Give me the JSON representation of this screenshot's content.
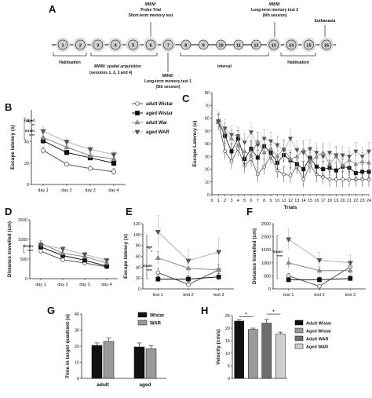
{
  "panel_letters": [
    "A",
    "B",
    "C",
    "D",
    "E",
    "F",
    "G",
    "H"
  ],
  "timeline": {
    "days": [
      "1",
      "2",
      "3",
      "4",
      "5",
      "6",
      "7",
      "8",
      "9",
      "10",
      "11",
      "12",
      "13",
      "14",
      "15",
      "16"
    ],
    "highlight_days": [
      "1",
      "2",
      "3",
      "4",
      "5",
      "6",
      "7",
      "13",
      "14",
      "15",
      "16"
    ],
    "labels": {
      "habituation1": "Habituation",
      "acq_title": "MWM: spatial acquisition",
      "acq_sub": "(sessions 1, 2, 3 and 4)",
      "probe_mwm": "MWM:",
      "probe_l1": "Probe Trial",
      "probe_l2": "Short-term memory test",
      "lt1_mwm": "MWM:",
      "lt1_l1": "Long-term memory test 1",
      "lt1_l2": "(5th session)",
      "interval": "Interval",
      "lt2_mwm": "MWM:",
      "lt2_l1": "Long-term memory test 2",
      "lt2_l2": "(6th session)",
      "habituation2": "Habituation",
      "euthanasia": "Euthanasia"
    }
  },
  "legend_groups": [
    "adult Wistar",
    "aged Wistar",
    "adult War",
    "aged WAR"
  ],
  "chart_data": [
    {
      "panel": "B",
      "type": "line",
      "ylabel": "Escape latency (s)",
      "xlabel": "",
      "categories": [
        "day 1",
        "day 2",
        "day 3",
        "day 4"
      ],
      "ylim": [
        0,
        70
      ],
      "yticks": [
        "0",
        "20",
        "40",
        "60"
      ],
      "series": [
        {
          "name": "adult Wistar",
          "values": [
            32,
            19,
            15,
            12
          ],
          "err": [
            3,
            2,
            2,
            3
          ]
        },
        {
          "name": "aged Wistar",
          "values": [
            41,
            30,
            25,
            20
          ],
          "err": [
            3,
            2,
            2,
            3
          ]
        },
        {
          "name": "adult War",
          "values": [
            44,
            35,
            27,
            24
          ],
          "err": [
            4,
            3,
            3,
            3
          ]
        },
        {
          "name": "aged WAR",
          "values": [
            50,
            40,
            33,
            28
          ],
          "err": [
            4,
            4,
            3,
            3
          ]
        }
      ],
      "annotations": [
        "aged",
        "**",
        "strain",
        "****"
      ]
    },
    {
      "panel": "C",
      "type": "line",
      "ylabel": "Escape Latency (s)",
      "xlabel": "Trials",
      "x": [
        "0",
        "1",
        "2",
        "3",
        "4",
        "5",
        "6",
        "7",
        "8",
        "9",
        "10",
        "11",
        "12",
        "13",
        "14",
        "15",
        "16",
        "17",
        "18",
        "19",
        "20",
        "21",
        "22",
        "23",
        "24"
      ],
      "ylim": [
        0,
        80
      ],
      "yticks": [
        "0",
        "10",
        "20",
        "30",
        "40",
        "50",
        "60",
        "70",
        "80"
      ],
      "series": [
        {
          "name": "adult Wistar",
          "values": [
            null,
            57,
            34,
            26,
            36,
            23,
            28,
            16,
            22,
            30,
            19,
            16,
            15,
            22,
            12,
            23,
            16,
            14,
            12,
            12,
            12,
            12,
            12,
            12,
            12
          ],
          "err": 6
        },
        {
          "name": "aged Wistar",
          "values": [
            null,
            57,
            46,
            34,
            44,
            28,
            36,
            29,
            38,
            33,
            25,
            31,
            27,
            24,
            20,
            29,
            22,
            20,
            21,
            19,
            22,
            21,
            17,
            18,
            18
          ],
          "err": 6
        },
        {
          "name": "adult War",
          "values": [
            null,
            57,
            49,
            44,
            39,
            34,
            31,
            42,
            33,
            36,
            30,
            36,
            28,
            30,
            35,
            26,
            30,
            33,
            24,
            30,
            23,
            27,
            24,
            26,
            25
          ],
          "err": 7
        },
        {
          "name": "aged WAR",
          "values": [
            null,
            58,
            52,
            47,
            46,
            41,
            49,
            39,
            44,
            42,
            39,
            35,
            44,
            35,
            33,
            36,
            33,
            30,
            33,
            31,
            31,
            30,
            34,
            30,
            34
          ],
          "err": 7
        }
      ]
    },
    {
      "panel": "D",
      "type": "line",
      "ylabel": "Distance travelled (cm)",
      "xlabel": "",
      "categories": [
        "day 1",
        "day 2",
        "day 3",
        "day 4"
      ],
      "ylim": [
        0,
        1500
      ],
      "yticks": [
        "0",
        "500",
        "1000",
        "1500"
      ],
      "series": [
        {
          "name": "adult Wistar",
          "values": [
            700,
            480,
            400,
            300
          ],
          "err": [
            50,
            40,
            40,
            40
          ]
        },
        {
          "name": "aged Wistar",
          "values": [
            810,
            590,
            470,
            320
          ],
          "err": [
            60,
            50,
            50,
            40
          ]
        },
        {
          "name": "adult War",
          "values": [
            900,
            650,
            560,
            400
          ],
          "err": [
            70,
            50,
            50,
            50
          ]
        },
        {
          "name": "aged WAR",
          "values": [
            860,
            760,
            620,
            470
          ],
          "err": [
            70,
            60,
            60,
            50
          ]
        }
      ],
      "annotations": [
        "strain",
        "****"
      ]
    },
    {
      "panel": "E",
      "type": "line",
      "ylabel": "Escape latency (s)",
      "xlabel": "",
      "categories": [
        "test 1",
        "test 2",
        "test 3"
      ],
      "ylim": [
        0,
        120
      ],
      "yticks": [
        "0",
        "20",
        "40",
        "60",
        "80",
        "100",
        "120"
      ],
      "series": [
        {
          "name": "adult Wistar",
          "values": [
            30,
            8,
            35
          ],
          "err": [
            8,
            4,
            10
          ]
        },
        {
          "name": "aged Wistar",
          "values": [
            18,
            18,
            22
          ],
          "err": [
            5,
            6,
            6
          ]
        },
        {
          "name": "adult War",
          "values": [
            57,
            38,
            35
          ],
          "err": [
            12,
            10,
            10
          ]
        },
        {
          "name": "aged WAR",
          "values": [
            105,
            52,
            68
          ],
          "err": [
            30,
            20,
            25
          ]
        }
      ],
      "annotations": [
        "age",
        "*",
        "strain",
        "****"
      ]
    },
    {
      "panel": "F",
      "type": "line",
      "ylabel": "Distance travelled (cm)",
      "xlabel": "",
      "categories": [
        "test 1",
        "test 2",
        "test 3"
      ],
      "ylim": [
        0,
        2500
      ],
      "yticks": [
        "0",
        "500",
        "1000",
        "1500",
        "2000",
        "2500"
      ],
      "series": [
        {
          "name": "adult Wistar",
          "values": [
            500,
            100,
            850
          ],
          "err": [
            100,
            50,
            200
          ]
        },
        {
          "name": "aged Wistar",
          "values": [
            350,
            350,
            400
          ],
          "err": [
            80,
            100,
            100
          ]
        },
        {
          "name": "adult War",
          "values": [
            1000,
            700,
            700
          ],
          "err": [
            200,
            150,
            150
          ]
        },
        {
          "name": "aged WAR",
          "values": [
            1900,
            1100,
            1000
          ],
          "err": [
            400,
            300,
            300
          ]
        }
      ],
      "annotations": [
        "strain",
        "****"
      ]
    },
    {
      "panel": "G",
      "type": "bar",
      "ylabel": "Time in target quadrant (s)",
      "xlabel": "",
      "categories": [
        "adult",
        "aged"
      ],
      "ylim": [
        0,
        40
      ],
      "yticks": [
        "0",
        "10",
        "20",
        "30",
        "40"
      ],
      "series": [
        {
          "name": "Wistar",
          "values": [
            20.5,
            19.5
          ],
          "err": [
            1.5,
            2.5
          ]
        },
        {
          "name": "WAR",
          "values": [
            23,
            18.5
          ],
          "err": [
            2,
            1.8
          ]
        }
      ]
    },
    {
      "panel": "H",
      "type": "bar",
      "ylabel": "Velocity (cm/s)",
      "xlabel": "",
      "categories": [
        "Adult Wistar",
        "Aged Wistar",
        "Adult WAR",
        "Aged WAR"
      ],
      "ylim": [
        0,
        25
      ],
      "yticks": [
        "0",
        "5",
        "10",
        "15",
        "20",
        "25"
      ],
      "values": [
        22.8,
        19.5,
        22.0,
        17.6
      ],
      "err": [
        0.5,
        0.5,
        1.5,
        0.8
      ],
      "significance": [
        "*",
        "*"
      ]
    }
  ],
  "colors": {
    "black": "#111111",
    "dark_gray": "#555555",
    "mid_gray": "#888888",
    "light_gray": "#b3b3b3",
    "circle_fill": "#cfcfcf"
  }
}
